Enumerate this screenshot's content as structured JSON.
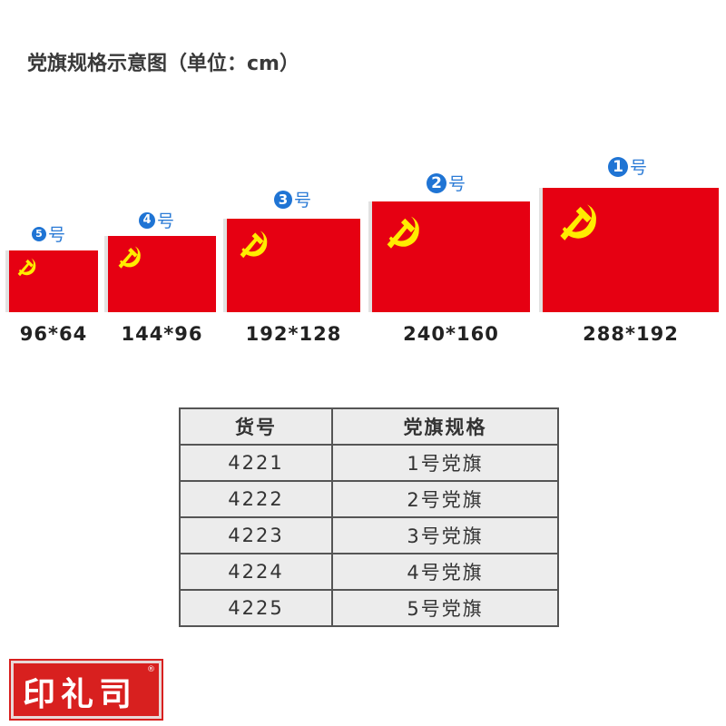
{
  "title": "党旗规格示意图（单位：cm）",
  "flags": [
    {
      "badge": "5",
      "suffix": "号",
      "size": "96*64"
    },
    {
      "badge": "4",
      "suffix": "号",
      "size": "144*96"
    },
    {
      "badge": "3",
      "suffix": "号",
      "size": "192*128"
    },
    {
      "badge": "2",
      "suffix": "号",
      "size": "240*160"
    },
    {
      "badge": "1",
      "suffix": "号",
      "size": "288*192"
    }
  ],
  "table": {
    "headers": [
      "货号",
      "党旗规格"
    ],
    "rows": [
      [
        "4221",
        "1号党旗"
      ],
      [
        "4222",
        "2号党旗"
      ],
      [
        "4223",
        "3号党旗"
      ],
      [
        "4224",
        "4号党旗"
      ],
      [
        "4225",
        "5号党旗"
      ]
    ]
  },
  "logo": {
    "text": "印礼司",
    "mark": "®"
  },
  "colors": {
    "flag_red": "#e60012",
    "emblem_yellow": "#ffec00",
    "badge_blue": "#1f74d4"
  }
}
